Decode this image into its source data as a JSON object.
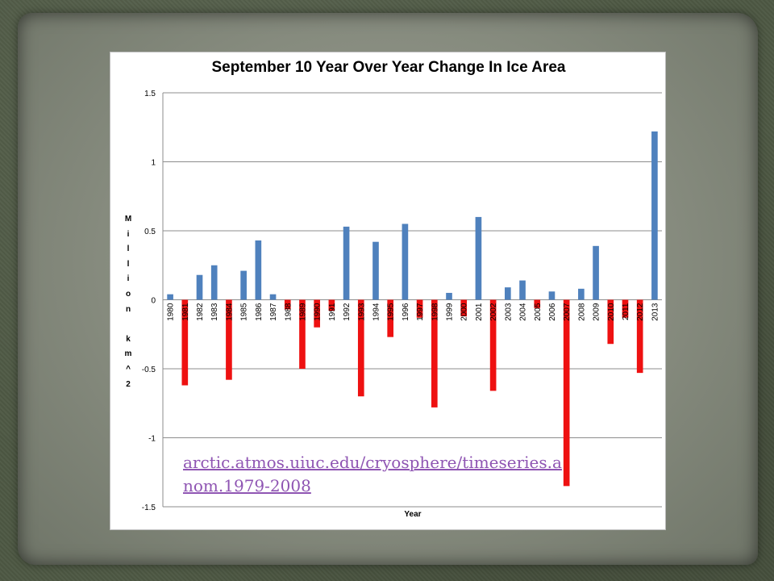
{
  "slide": {
    "source_link": "arctic.atmos.uiuc.edu/cryosphere/timeseries.anom.1979-2008"
  },
  "colors": {
    "positive_bar": "#4f81bd",
    "negative_bar": "#ee1111",
    "link": "#8f55b3",
    "gridline": "#8c8c8c"
  },
  "chart_data": {
    "type": "bar",
    "title": "September 10 Year Over Year Change In Ice Area",
    "xlabel": "Year",
    "ylabel": "Million km^2",
    "ylabel_display": "M\ni\nl\nl\ni\no\nn\n\nk\nm\n^\n2",
    "ylim": [
      -1.5,
      1.5
    ],
    "yticks": [
      "1.5",
      "1",
      "0.5",
      "0",
      "-0.5",
      "-1",
      "-1.5"
    ],
    "grid": true,
    "legend": "none",
    "categories": [
      "1980",
      "1981",
      "1982",
      "1983",
      "1984",
      "1985",
      "1986",
      "1987",
      "1988",
      "1989",
      "1990",
      "1991",
      "1992",
      "1993",
      "1994",
      "1995",
      "1996",
      "1997",
      "1998",
      "1999",
      "2000",
      "2001",
      "2002",
      "2003",
      "2004",
      "2005",
      "2006",
      "2007",
      "2008",
      "2009",
      "2010",
      "2011",
      "2012",
      "2013"
    ],
    "values": [
      0.04,
      -0.62,
      0.18,
      0.25,
      -0.58,
      0.21,
      0.43,
      0.04,
      -0.07,
      -0.5,
      -0.2,
      -0.08,
      0.53,
      -0.7,
      0.42,
      -0.27,
      0.55,
      -0.13,
      -0.78,
      0.05,
      -0.12,
      0.6,
      -0.66,
      0.09,
      0.14,
      -0.06,
      0.06,
      -1.35,
      0.08,
      0.39,
      -0.32,
      -0.13,
      -0.53,
      1.22
    ]
  }
}
